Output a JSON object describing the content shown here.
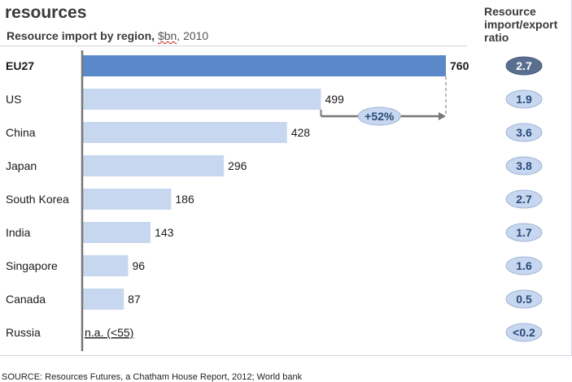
{
  "header": {
    "title": "resources",
    "subtitle_bold": "Resource import by region,",
    "subtitle_unit": "$bn",
    "subtitle_rest": ", 2010",
    "ratio_header": "Resource import/export ratio"
  },
  "footer": {
    "source": "SOURCE: Resources Futures, a Chatham House Report, 2012; World bank"
  },
  "colors": {
    "highlight_bar": "#5b88c8",
    "bar": "#c6d7ef",
    "ratio_pill": "#c6d7ef",
    "ratio_pill_highlight": "#5a6f8f",
    "axis": "#777777"
  },
  "chart_data": {
    "type": "bar",
    "orientation": "horizontal",
    "categories": [
      "EU27",
      "US",
      "China",
      "Japan",
      "South Korea",
      "India",
      "Singapore",
      "Canada",
      "Russia"
    ],
    "values": [
      760,
      499,
      428,
      296,
      186,
      143,
      96,
      87,
      null
    ],
    "value_labels": [
      "760",
      "499",
      "428",
      "296",
      "186",
      "143",
      "96",
      "87",
      "n.a. (<55)"
    ],
    "highlight": "EU27",
    "ratios": [
      "2.7",
      "1.9",
      "3.6",
      "3.8",
      "2.7",
      "1.7",
      "1.6",
      "0.5",
      "<0.2"
    ],
    "annotation": {
      "text": "+52%",
      "from": "US",
      "to": "EU27"
    },
    "xlim": [
      0,
      760
    ]
  }
}
